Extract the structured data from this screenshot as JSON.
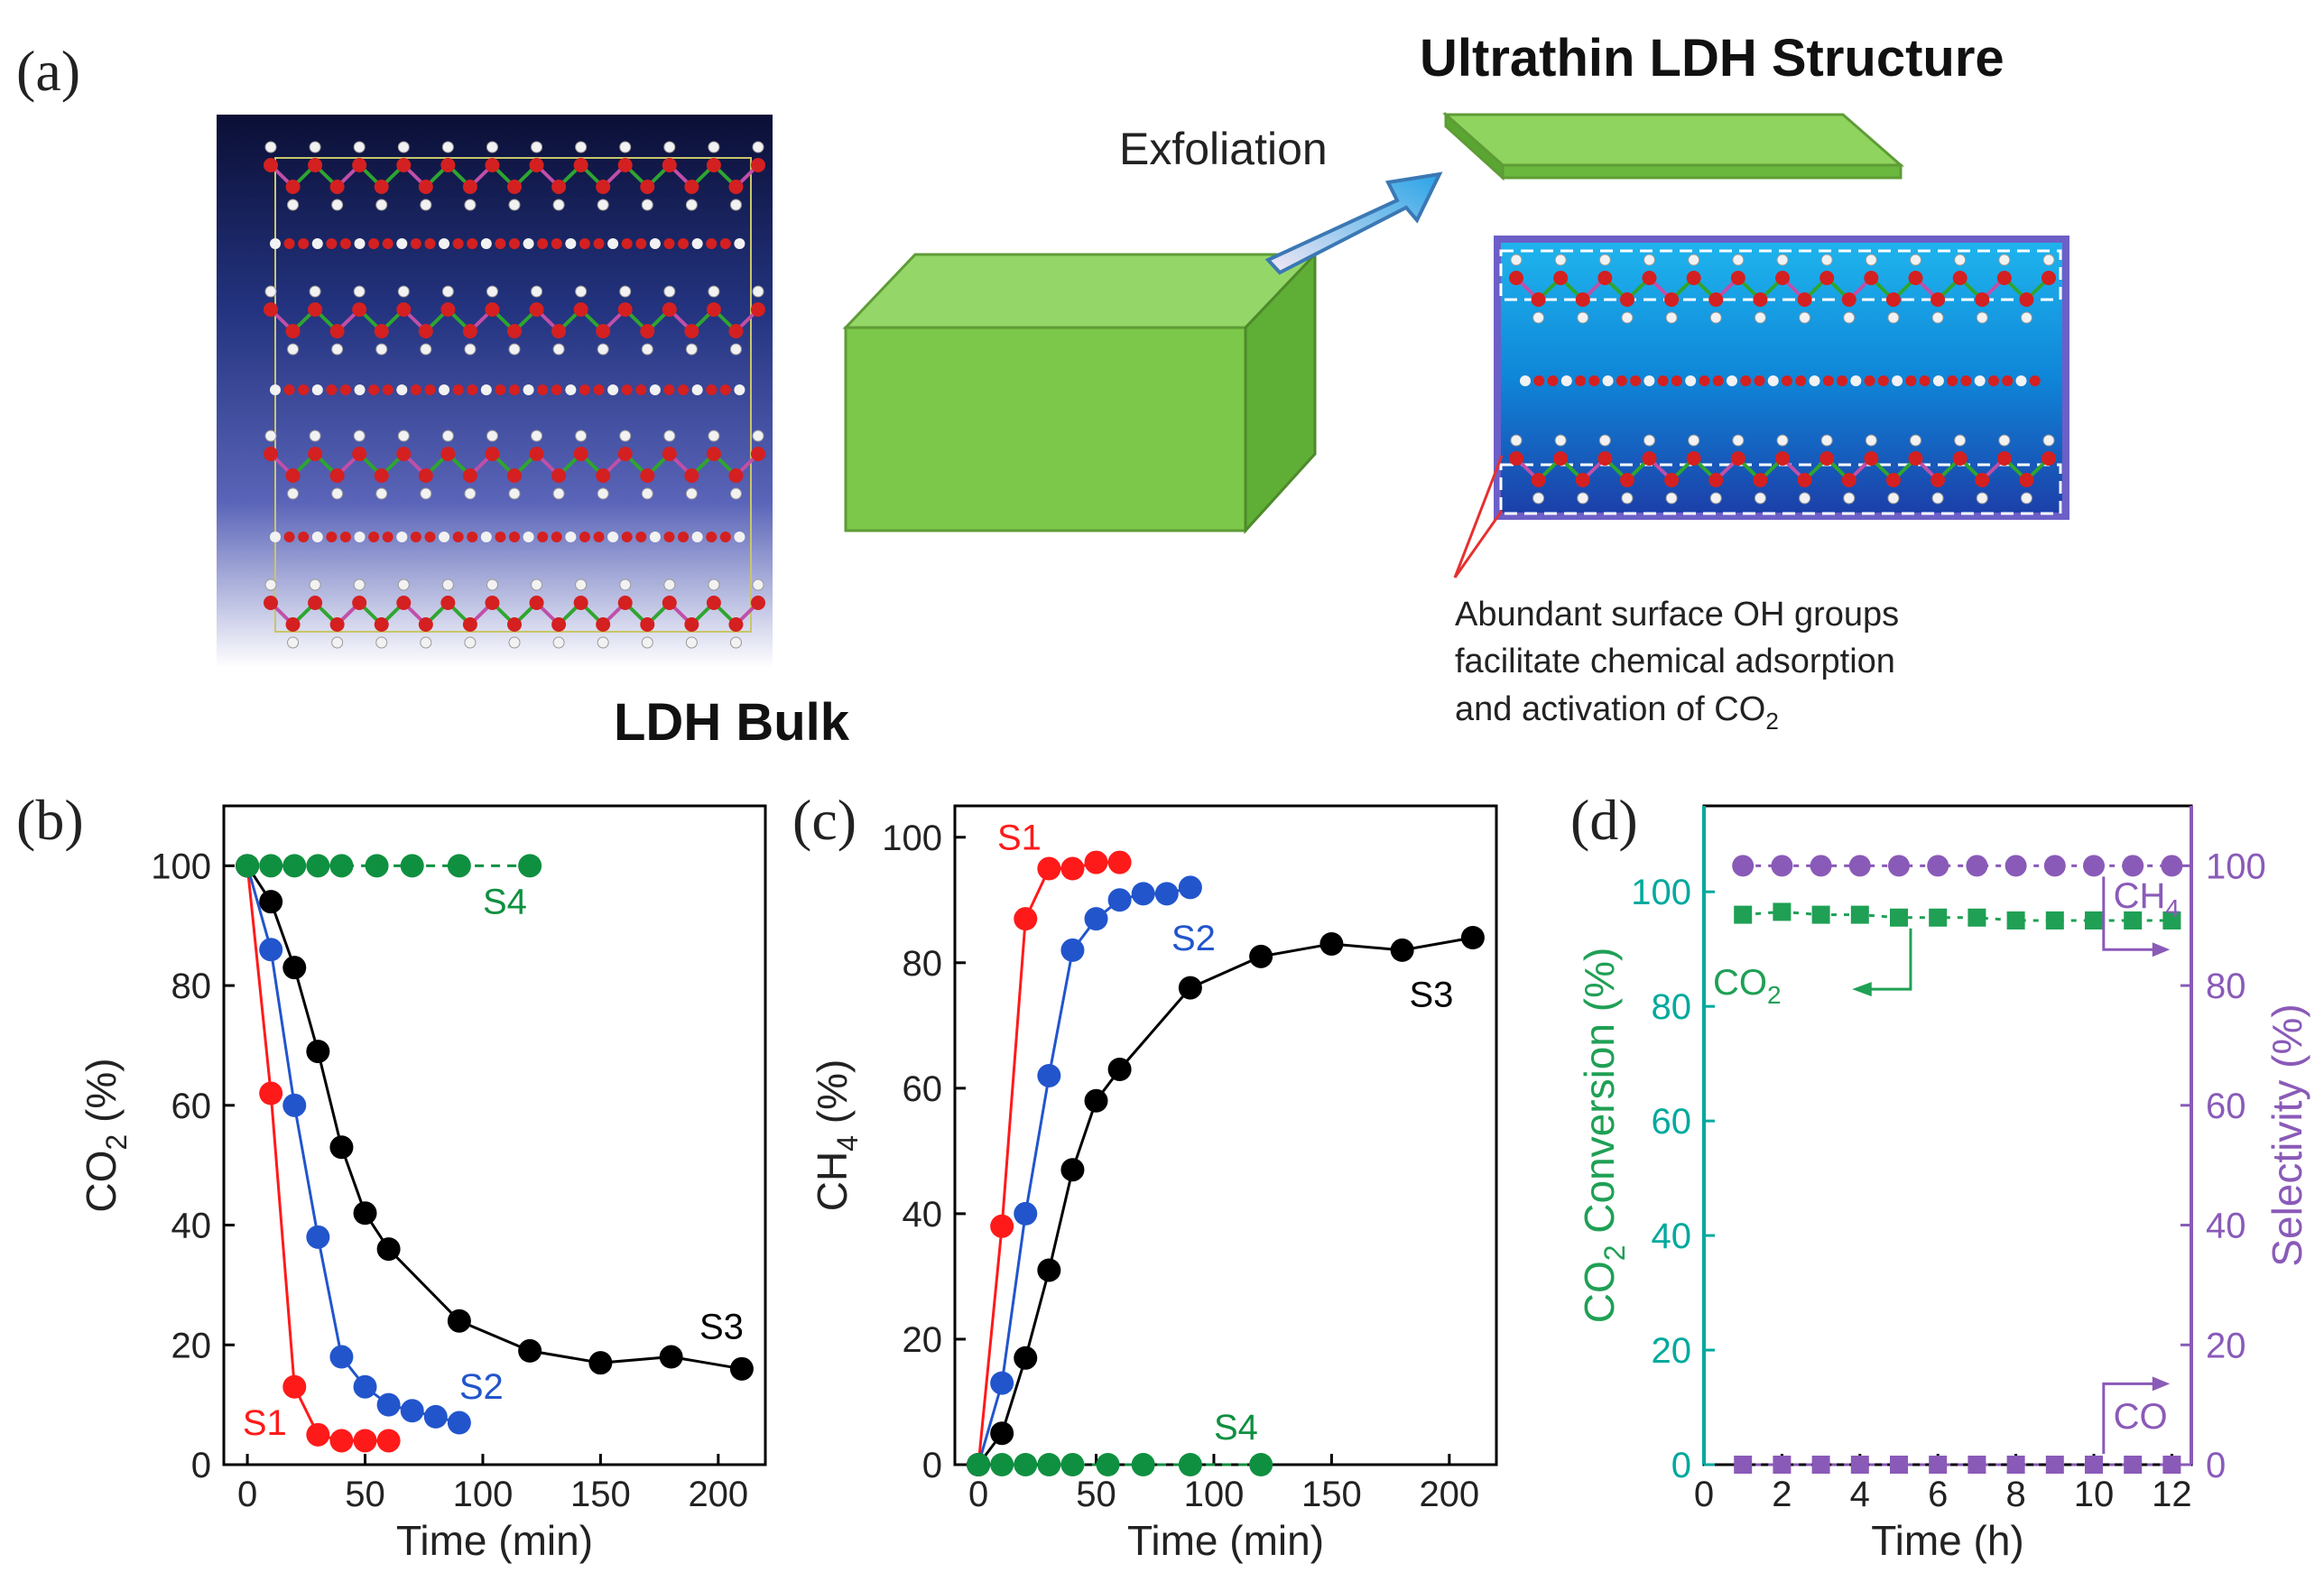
{
  "panel_a": {
    "label": "(a)",
    "bulk_label": "LDH Bulk",
    "ultrathin_label": "Ultrathin LDH Structure",
    "arrow_label": "Exfoliation",
    "annotation_lines": [
      "Abundant surface OH groups",
      "facilitate chemical adsorption",
      "and activation of CO"
    ],
    "annotation_sub": "2",
    "colors": {
      "green_block": "#7cc84a",
      "bulk_bg_top": "#0d1240",
      "bulk_bg_mid": "#2a3f9a",
      "bulk_bg_bottom": "#ffffff",
      "thin_bg": "#1aa7e8",
      "oxygen": "#d42020",
      "hydrogen": "#f2f2f2",
      "metal_green": "#2fa52f",
      "metal_pink": "#c04fa8",
      "frame_purple": "#6c5fc7"
    }
  },
  "chart_data": [
    {
      "panel": "(b)",
      "type": "scatter",
      "xlabel": "Time (min)",
      "ylabel_main": "CO",
      "ylabel_sub": "2",
      "ylabel_tail": " (%)",
      "xlim": [
        -10,
        220
      ],
      "ylim": [
        0,
        110
      ],
      "xticks": [
        0,
        50,
        100,
        150,
        200
      ],
      "yticks": [
        0,
        20,
        40,
        60,
        80,
        100
      ],
      "series": [
        {
          "name": "S1",
          "color": "#ff1a1a",
          "x": [
            0,
            10,
            20,
            30,
            40,
            50,
            60
          ],
          "y": [
            100,
            62,
            13,
            5,
            4,
            4,
            4
          ]
        },
        {
          "name": "S2",
          "color": "#2255cc",
          "x": [
            0,
            10,
            20,
            30,
            40,
            50,
            60,
            70,
            80,
            90
          ],
          "y": [
            100,
            86,
            60,
            38,
            18,
            13,
            10,
            9,
            8,
            7
          ]
        },
        {
          "name": "S3",
          "color": "#000000",
          "x": [
            0,
            10,
            20,
            30,
            40,
            50,
            60,
            90,
            120,
            150,
            180,
            210
          ],
          "y": [
            100,
            94,
            83,
            69,
            53,
            42,
            36,
            24,
            19,
            17,
            18,
            16
          ]
        },
        {
          "name": "S4",
          "color": "#0f9040",
          "x": [
            0,
            10,
            20,
            30,
            40,
            55,
            70,
            90,
            120
          ],
          "y": [
            100,
            100,
            100,
            100,
            100,
            100,
            100,
            100,
            100
          ]
        }
      ]
    },
    {
      "panel": "(c)",
      "type": "scatter",
      "xlabel": "Time (min)",
      "ylabel_main": "CH",
      "ylabel_sub": "4",
      "ylabel_tail": " (%)",
      "xlim": [
        -10,
        220
      ],
      "ylim": [
        0,
        105
      ],
      "xticks": [
        0,
        50,
        100,
        150,
        200
      ],
      "yticks": [
        0,
        20,
        40,
        60,
        80,
        100
      ],
      "series": [
        {
          "name": "S1",
          "color": "#ff1a1a",
          "x": [
            0,
            10,
            20,
            30,
            40,
            50,
            60
          ],
          "y": [
            0,
            38,
            87,
            95,
            95,
            96,
            96
          ]
        },
        {
          "name": "S2",
          "color": "#2255cc",
          "x": [
            0,
            10,
            20,
            30,
            40,
            50,
            60,
            70,
            80,
            90
          ],
          "y": [
            0,
            13,
            40,
            62,
            82,
            87,
            90,
            91,
            91,
            92
          ]
        },
        {
          "name": "S3",
          "color": "#000000",
          "x": [
            0,
            10,
            20,
            30,
            40,
            50,
            60,
            90,
            120,
            150,
            180,
            210
          ],
          "y": [
            0,
            5,
            17,
            31,
            47,
            58,
            63,
            76,
            81,
            83,
            82,
            84
          ]
        },
        {
          "name": "S4",
          "color": "#0f9040",
          "x": [
            0,
            10,
            20,
            30,
            40,
            55,
            70,
            90,
            120
          ],
          "y": [
            0,
            0,
            0,
            0,
            0,
            0,
            0,
            0,
            0
          ]
        }
      ]
    },
    {
      "panel": "(d)",
      "type": "scatter",
      "xlabel": "Time (h)",
      "ylabel_left_main": "CO",
      "ylabel_left_sub": "2",
      "ylabel_left_tail": " Conversion (%)",
      "ylabel_right": "Selectivity (%)",
      "xlim": [
        0,
        12.5
      ],
      "ylim_left": [
        0,
        115
      ],
      "ylim_right": [
        0,
        110
      ],
      "xticks": [
        0,
        2,
        4,
        6,
        8,
        10,
        12
      ],
      "yticks_left": [
        0,
        20,
        40,
        60,
        80,
        100
      ],
      "yticks_right": [
        0,
        20,
        40,
        60,
        80,
        100
      ],
      "left_color": "#00a99d",
      "right_color": "#8a5ab8",
      "series": [
        {
          "name": "CO2",
          "axis": "left",
          "color": "#1fa055",
          "marker": "square",
          "x": [
            1,
            2,
            3,
            4,
            5,
            6,
            7,
            8,
            9,
            10,
            11,
            12
          ],
          "y": [
            96,
            96.5,
            96,
            96,
            95.5,
            95.5,
            95.5,
            95,
            95,
            95,
            95,
            95
          ]
        },
        {
          "name": "CH4",
          "axis": "right",
          "color": "#8a5ab8",
          "marker": "circle",
          "x": [
            1,
            2,
            3,
            4,
            5,
            6,
            7,
            8,
            9,
            10,
            11,
            12
          ],
          "y": [
            100,
            100,
            100,
            100,
            100,
            100,
            100,
            100,
            100,
            100,
            100,
            100
          ]
        },
        {
          "name": "CO",
          "axis": "right",
          "color": "#8a5ab8",
          "marker": "square",
          "x": [
            1,
            2,
            3,
            4,
            5,
            6,
            7,
            8,
            9,
            10,
            11,
            12
          ],
          "y": [
            0,
            0,
            0,
            0,
            0,
            0,
            0,
            0,
            0,
            0,
            0,
            0
          ]
        }
      ],
      "annotations": {
        "co2_main": "CO",
        "co2_sub": "2",
        "ch4_main": "CH",
        "ch4_sub": "4",
        "co": "CO"
      }
    }
  ]
}
